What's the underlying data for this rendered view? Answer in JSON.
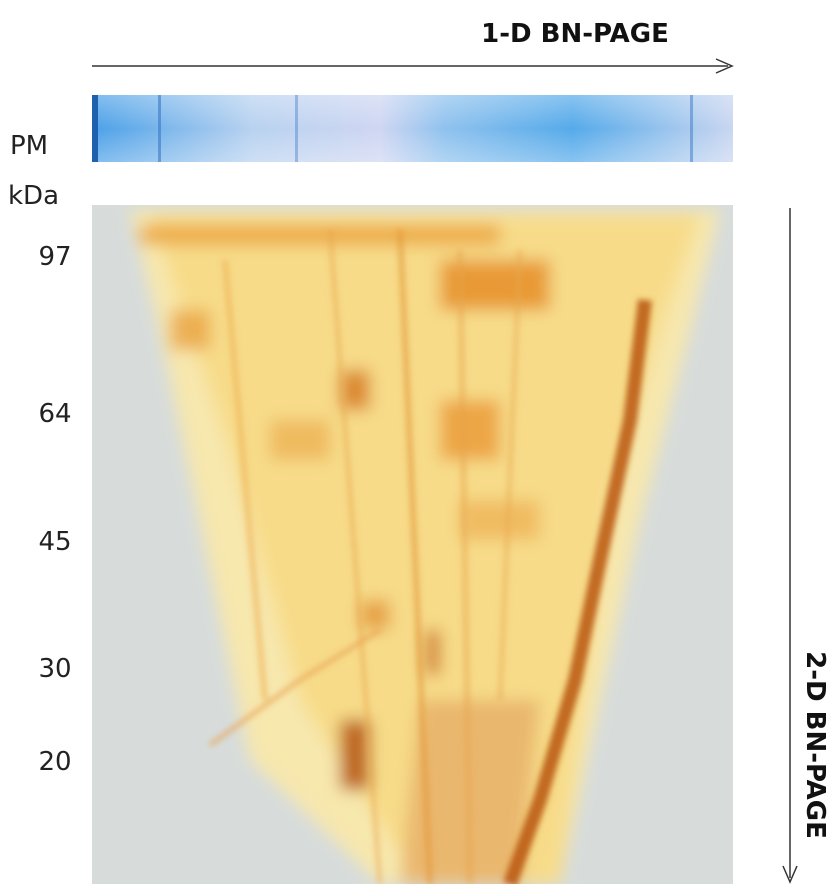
{
  "header": {
    "title": "1-D BN-PAGE"
  },
  "side_label": "2-D BN-PAGE",
  "ladder": {
    "name": "PM",
    "unit": "kDa",
    "markers": [
      97,
      64,
      45,
      30,
      20
    ]
  }
}
